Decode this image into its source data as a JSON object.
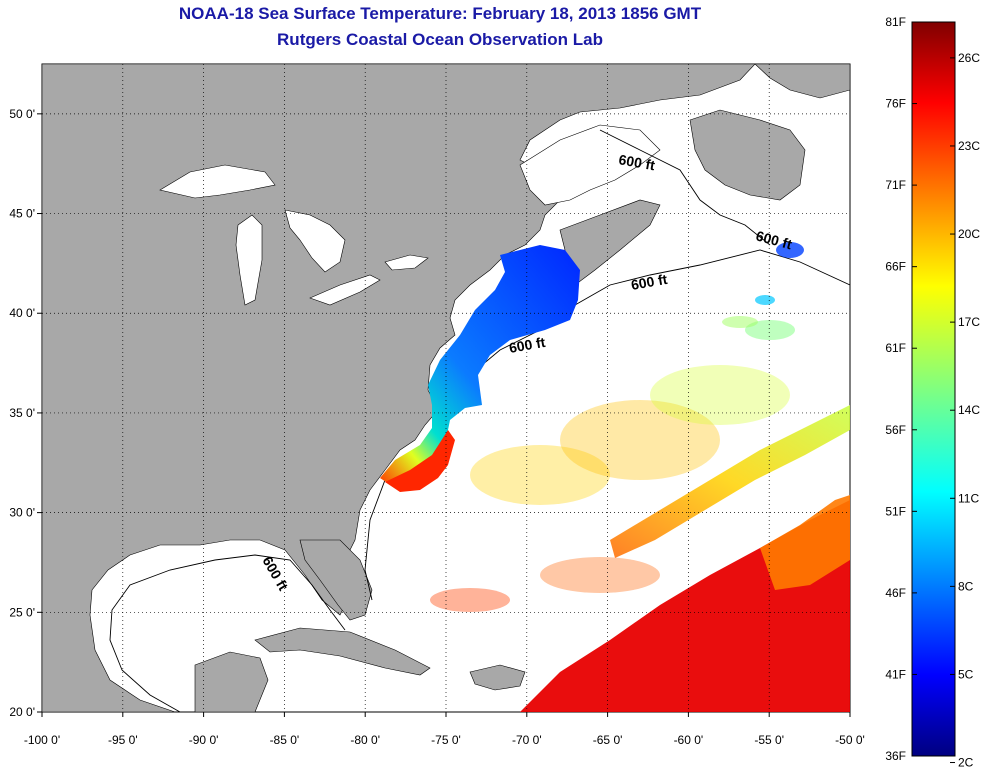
{
  "title": "NOAA-18 Sea Surface Temperature:  February 18, 2013 1856 GMT",
  "subtitle": "Rutgers Coastal Ocean Observation Lab",
  "map": {
    "lon_range": [
      -100,
      -50
    ],
    "lat_range": [
      20,
      52.5
    ],
    "lon_ticks": [
      "-100 0'",
      "-95 0'",
      "-90 0'",
      "-85 0'",
      "-80 0'",
      "-75 0'",
      "-70 0'",
      "-65 0'",
      "-60 0'",
      "-55 0'",
      "-50 0'"
    ],
    "lat_ticks": [
      "50 0'",
      "45 0'",
      "40 0'",
      "35 0'",
      "30 0'",
      "25 0'",
      "20 0'"
    ],
    "isobath_labels": [
      "600 ft",
      "600 ft",
      "600 ft",
      "600 ft",
      "600 ft"
    ],
    "colors": {
      "land": "#a8a8a8",
      "ocean": "#ffffff",
      "grid": "#000000"
    }
  },
  "colorbar": {
    "fahrenheit_labels": [
      "81F",
      "76F",
      "71F",
      "66F",
      "61F",
      "56F",
      "51F",
      "46F",
      "41F",
      "36F"
    ],
    "celsius_labels": [
      "26C",
      "23C",
      "20C",
      "17C",
      "14C",
      "11C",
      "8C",
      "5C",
      "2C"
    ],
    "range_f": [
      36,
      81
    ],
    "colormap": "jet"
  }
}
